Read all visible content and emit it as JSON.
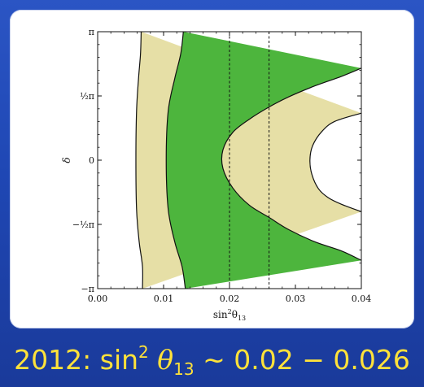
{
  "caption": {
    "year": "2012:",
    "func": "sin",
    "power": "2",
    "theta": "θ",
    "sub": "13",
    "sim": "∼",
    "range": "0.02 − 0.026"
  },
  "colors": {
    "background": "#1f47b4",
    "panel": "#ffffff",
    "outer_region": "#e6dfa6",
    "inner_region": "#4db53d",
    "caption_text": "#ffe23a"
  },
  "chart_data": {
    "type": "contour",
    "xlabel": "sin²θ₁₃",
    "ylabel": "δ",
    "xlim": [
      0,
      0.04
    ],
    "ylim": [
      -3.14159,
      3.14159
    ],
    "x_ticks": [
      "0.00",
      "0.01",
      "0.02",
      "0.03",
      "0.04"
    ],
    "y_ticks": [
      "−π",
      "−½π",
      "0",
      "½π",
      "π"
    ],
    "regions": [
      {
        "name": "outer region",
        "color": "#e6dfa6",
        "left_boundary": [
          [
            0.0068,
            -3.1416
          ],
          [
            0.0068,
            -2.6
          ],
          [
            0.0063,
            -2.0
          ],
          [
            0.0059,
            -1.2
          ],
          [
            0.0058,
            0
          ],
          [
            0.0059,
            1.2
          ],
          [
            0.0062,
            2.0
          ],
          [
            0.0065,
            2.6
          ],
          [
            0.0066,
            3.1416
          ]
        ],
        "hole_boundary": [
          [
            0.04,
            -1.26
          ],
          [
            0.037,
            -1.08
          ],
          [
            0.035,
            -0.92
          ],
          [
            0.0335,
            -0.7
          ],
          [
            0.0325,
            -0.35
          ],
          [
            0.0322,
            0
          ],
          [
            0.0326,
            0.35
          ],
          [
            0.034,
            0.7
          ],
          [
            0.036,
            0.95
          ],
          [
            0.04,
            1.15
          ]
        ]
      },
      {
        "name": "inner region",
        "color": "#4db53d",
        "left_boundary": [
          [
            0.0133,
            -3.1416
          ],
          [
            0.0128,
            -2.6
          ],
          [
            0.0117,
            -2.0
          ],
          [
            0.0107,
            -1.2
          ],
          [
            0.0104,
            0
          ],
          [
            0.0107,
            1.2
          ],
          [
            0.0117,
            2.0
          ],
          [
            0.0126,
            2.6
          ],
          [
            0.013,
            3.1416
          ]
        ],
        "hole_boundary": [
          [
            0.04,
            -2.45
          ],
          [
            0.037,
            -2.22
          ],
          [
            0.033,
            -2.0
          ],
          [
            0.029,
            -1.7
          ],
          [
            0.026,
            -1.4
          ],
          [
            0.023,
            -1.1
          ],
          [
            0.0205,
            -0.68
          ],
          [
            0.019,
            -0.2
          ],
          [
            0.019,
            0.25
          ],
          [
            0.0205,
            0.68
          ],
          [
            0.023,
            1.0
          ],
          [
            0.026,
            1.3
          ],
          [
            0.029,
            1.55
          ],
          [
            0.033,
            1.82
          ],
          [
            0.037,
            2.05
          ],
          [
            0.04,
            2.25
          ]
        ]
      }
    ],
    "dashed_lines_x": [
      0.02,
      0.026
    ]
  }
}
